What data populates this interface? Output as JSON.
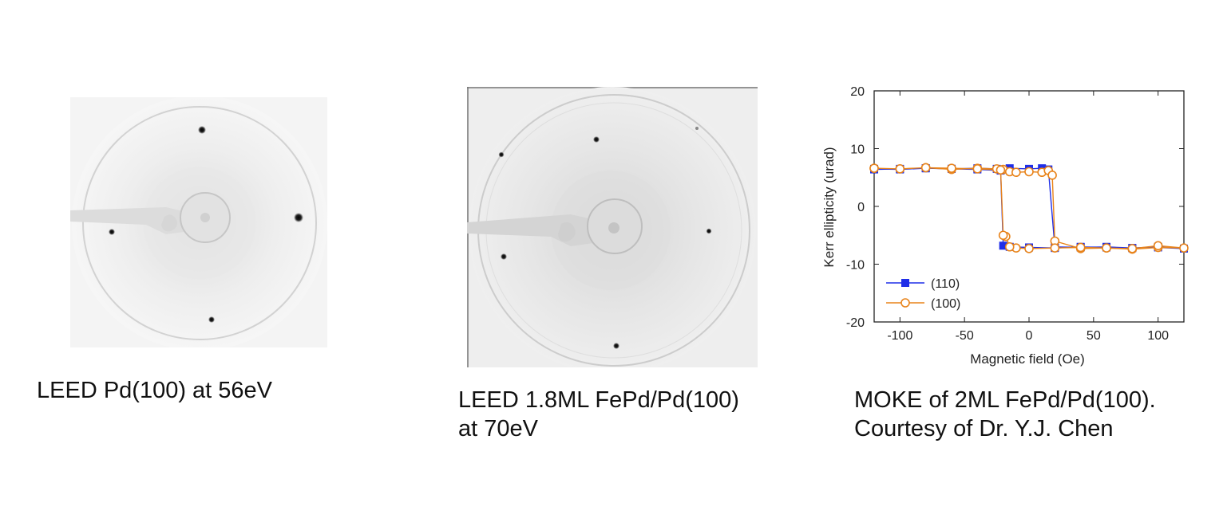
{
  "captions": {
    "leed1": "LEED Pd(100) at 56eV",
    "leed2_line1": "LEED 1.8ML FePd/Pd(100)",
    "leed2_line2": "at 70eV",
    "moke_line1": "MOKE of 2ML FePd/Pd(100).",
    "moke_line2": "Courtesy of Dr. Y.J. Chen"
  },
  "chart_data": {
    "type": "line",
    "title": "",
    "xlabel": "Magnetic field (Oe)",
    "ylabel": "Kerr ellipticity (urad)",
    "xlim": [
      -120,
      120
    ],
    "ylim": [
      -20,
      20
    ],
    "xticks": [
      -100,
      -50,
      0,
      50,
      100
    ],
    "yticks": [
      -20,
      -10,
      0,
      10,
      20
    ],
    "legend_position": "bottom-left",
    "grid": false,
    "series": [
      {
        "name": "(110)",
        "color": "#1f2ee8",
        "marker": "filled-square",
        "x": [
          -120,
          -100,
          -80,
          -60,
          -40,
          -25,
          -20,
          -15,
          0,
          10,
          15,
          20,
          40,
          60,
          80,
          100,
          120,
          100,
          80,
          60,
          40,
          20,
          0,
          -15,
          -20,
          -22,
          -40,
          -60,
          -80,
          -100,
          -120
        ],
        "y": [
          6.5,
          6.4,
          6.6,
          6.5,
          6.6,
          6.5,
          6.4,
          6.6,
          6.5,
          6.6,
          6.4,
          -7.0,
          -7.1,
          -7.0,
          -7.2,
          -7.1,
          -7.3,
          -7.0,
          -7.2,
          -7.1,
          -7.0,
          -7.2,
          -7.1,
          -7.0,
          -6.8,
          6.2,
          6.4,
          6.5,
          6.6,
          6.5,
          6.4
        ]
      },
      {
        "name": "(100)",
        "color": "#e8831a",
        "marker": "open-circle",
        "x": [
          -120,
          -100,
          -80,
          -60,
          -40,
          -25,
          -20,
          -15,
          -10,
          0,
          10,
          15,
          18,
          20,
          40,
          60,
          80,
          100,
          120,
          100,
          80,
          60,
          40,
          20,
          0,
          -10,
          -15,
          -18,
          -20,
          -22,
          -40,
          -60,
          -80,
          -100,
          -120
        ],
        "y": [
          6.6,
          6.5,
          6.7,
          6.4,
          6.6,
          6.5,
          6.4,
          6.0,
          5.9,
          6.0,
          5.9,
          6.2,
          5.4,
          -6.0,
          -7.3,
          -7.2,
          -7.4,
          -7.1,
          -7.2,
          -6.8,
          -7.3,
          -7.2,
          -7.1,
          -7.2,
          -7.3,
          -7.2,
          -7.0,
          -5.2,
          -5.0,
          6.3,
          6.5,
          6.6,
          6.7,
          6.5,
          6.6
        ]
      }
    ]
  }
}
